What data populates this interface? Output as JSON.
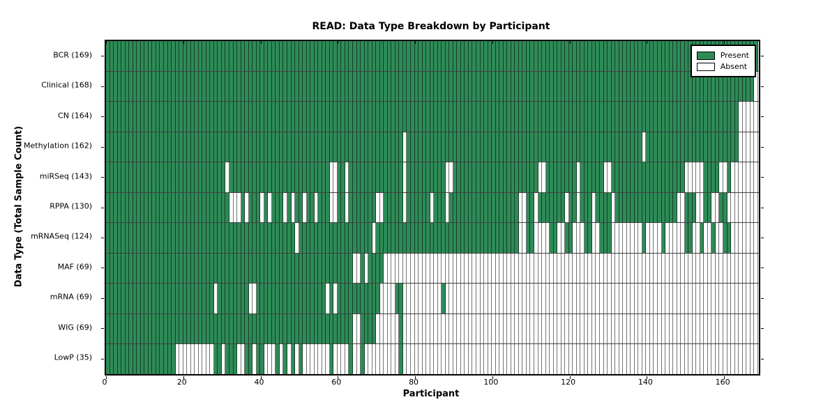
{
  "title": "READ: Data Type Breakdown by Participant",
  "x_axis_label": "Participant",
  "y_axis_label": "Data Type (Total Sample Count)",
  "legend": {
    "present_label": "Present",
    "absent_label": "Absent"
  },
  "colors": {
    "present": "#2E8B57",
    "absent": "#FFFFFF",
    "cell_border": "rgba(0,0,0,0.55)",
    "plot_border": "#000000"
  },
  "chart_data": {
    "type": "heatmap",
    "title": "READ: Data Type Breakdown by Participant",
    "xlabel": "Participant",
    "ylabel": "Data Type (Total Sample Count)",
    "legend": [
      "Present",
      "Absent"
    ],
    "legend_position": "upper right",
    "grid": "per-cell black outlines",
    "n_participants": 169,
    "x_range": [
      0,
      169
    ],
    "x_ticks": [
      0,
      20,
      40,
      60,
      80,
      100,
      120,
      140,
      160
    ],
    "value_encoding": {
      "present": "green cell",
      "absent": "white cell"
    },
    "rows": [
      {
        "label": "BCR",
        "total": 169,
        "display": "BCR (169)",
        "absent_runs": []
      },
      {
        "label": "Clinical",
        "total": 168,
        "display": "Clinical (168)",
        "absent_runs": [
          [
            168,
            168
          ]
        ]
      },
      {
        "label": "CN",
        "total": 164,
        "display": "CN (164)",
        "absent_runs": [
          [
            164,
            168
          ]
        ]
      },
      {
        "label": "Methylation",
        "total": 162,
        "display": "Methylation (162)",
        "absent_runs": [
          [
            77,
            77
          ],
          [
            139,
            139
          ],
          [
            164,
            168
          ]
        ]
      },
      {
        "label": "miRSeq",
        "total": 143,
        "display": "miRSeq (143)",
        "absent_runs": [
          [
            31,
            31
          ],
          [
            58,
            59
          ],
          [
            62,
            62
          ],
          [
            77,
            77
          ],
          [
            88,
            89
          ],
          [
            112,
            113
          ],
          [
            122,
            122
          ],
          [
            129,
            130
          ],
          [
            150,
            154
          ],
          [
            159,
            160
          ],
          [
            162,
            168
          ]
        ]
      },
      {
        "label": "RPPA",
        "total": 130,
        "display": "RPPA (130)",
        "absent_runs": [
          [
            32,
            34
          ],
          [
            36,
            36
          ],
          [
            40,
            40
          ],
          [
            42,
            42
          ],
          [
            46,
            46
          ],
          [
            48,
            48
          ],
          [
            51,
            51
          ],
          [
            54,
            54
          ],
          [
            58,
            59
          ],
          [
            62,
            62
          ],
          [
            70,
            71
          ],
          [
            77,
            77
          ],
          [
            84,
            84
          ],
          [
            88,
            88
          ],
          [
            107,
            108
          ],
          [
            111,
            111
          ],
          [
            119,
            119
          ],
          [
            122,
            122
          ],
          [
            126,
            126
          ],
          [
            131,
            131
          ],
          [
            148,
            149
          ],
          [
            153,
            154
          ],
          [
            157,
            158
          ],
          [
            161,
            168
          ]
        ]
      },
      {
        "label": "mRNASeq",
        "total": 124,
        "display": "mRNASeq (124)",
        "absent_runs": [
          [
            49,
            49
          ],
          [
            69,
            69
          ],
          [
            107,
            108
          ],
          [
            111,
            114
          ],
          [
            117,
            118
          ],
          [
            121,
            123
          ],
          [
            126,
            127
          ],
          [
            131,
            138
          ],
          [
            140,
            143
          ],
          [
            145,
            149
          ],
          [
            152,
            153
          ],
          [
            155,
            156
          ],
          [
            158,
            159
          ],
          [
            162,
            168
          ]
        ]
      },
      {
        "label": "MAF",
        "total": 69,
        "display": "MAF (69)",
        "absent_runs": [
          [
            64,
            65
          ],
          [
            67,
            67
          ],
          [
            72,
            168
          ]
        ]
      },
      {
        "label": "mRNA",
        "total": 69,
        "display": "mRNA (69)",
        "absent_runs": [
          [
            28,
            28
          ],
          [
            37,
            38
          ],
          [
            57,
            57
          ],
          [
            59,
            59
          ],
          [
            71,
            74
          ],
          [
            77,
            86
          ],
          [
            88,
            168
          ]
        ]
      },
      {
        "label": "WIG",
        "total": 69,
        "display": "WIG (69)",
        "absent_runs": [
          [
            64,
            65
          ],
          [
            70,
            75
          ],
          [
            77,
            168
          ]
        ]
      },
      {
        "label": "LowP",
        "total": 35,
        "display": "LowP (35)",
        "absent_runs": [
          [
            18,
            27
          ],
          [
            30,
            30
          ],
          [
            34,
            35
          ],
          [
            38,
            38
          ],
          [
            41,
            43
          ],
          [
            45,
            45
          ],
          [
            47,
            47
          ],
          [
            49,
            49
          ],
          [
            51,
            57
          ],
          [
            59,
            62
          ],
          [
            64,
            65
          ],
          [
            67,
            75
          ],
          [
            77,
            168
          ]
        ]
      }
    ]
  }
}
